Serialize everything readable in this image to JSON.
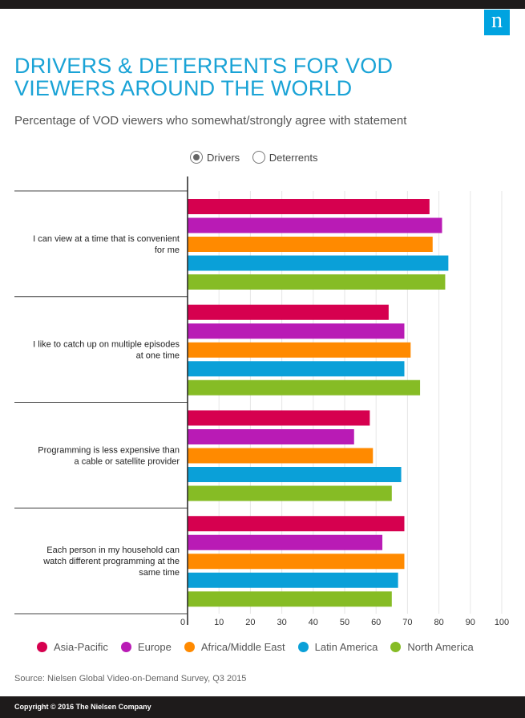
{
  "brand": {
    "logo_letter": "n",
    "color": "#00a3e0"
  },
  "title": "DRIVERS & DETERRENTS FOR VOD VIEWERS AROUND THE WORLD",
  "subtitle": "Percentage of VOD viewers who somewhat/strongly agree with statement",
  "toggle": {
    "options": [
      "Drivers",
      "Deterrents"
    ],
    "selected": "Drivers"
  },
  "chart_data": {
    "type": "bar",
    "orientation": "horizontal",
    "categories": [
      [
        "I can view at a time that is convenient",
        "for me"
      ],
      [
        "I like to catch up on multiple episodes",
        "at one time"
      ],
      [
        "Programming is less expensive than",
        "a cable or satellite provider"
      ],
      [
        "Each person in my household can",
        "watch different programming at the",
        "same time"
      ]
    ],
    "series": [
      {
        "name": "Asia-Pacific",
        "color": "#d6004f",
        "values": [
          77,
          64,
          58,
          69
        ]
      },
      {
        "name": "Europe",
        "color": "#b91bb5",
        "values": [
          81,
          69,
          53,
          62
        ]
      },
      {
        "name": "Africa/Middle East",
        "color": "#ff8a00",
        "values": [
          78,
          71,
          59,
          69
        ]
      },
      {
        "name": "Latin America",
        "color": "#0aa0d8",
        "values": [
          83,
          69,
          68,
          67
        ]
      },
      {
        "name": "North America",
        "color": "#86bc25",
        "values": [
          82,
          74,
          65,
          65
        ]
      }
    ],
    "xlim": [
      0,
      100
    ],
    "xticks": [
      0,
      10,
      20,
      30,
      40,
      50,
      60,
      70,
      80,
      90,
      100
    ],
    "grid": true,
    "legend": "bottom"
  },
  "source": "Source: Nielsen Global Video-on-Demand Survey, Q3 2015",
  "footer": "Copyright © 2016 The Nielsen Company"
}
